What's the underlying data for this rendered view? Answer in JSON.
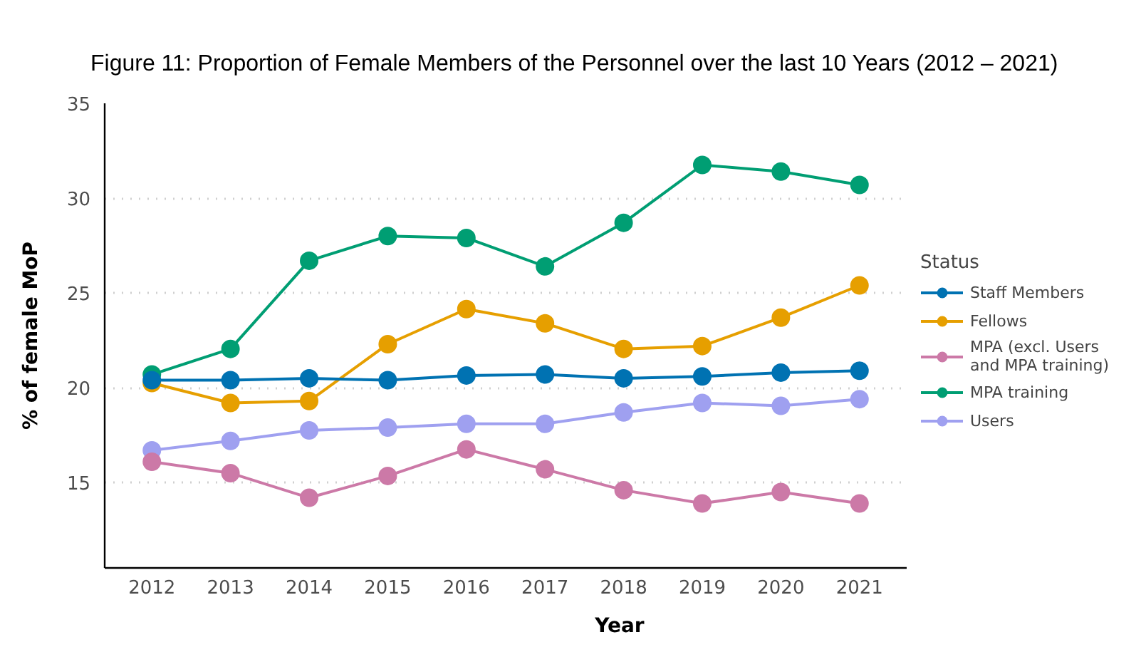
{
  "chart_data": {
    "type": "line",
    "title": "Figure 11: Proportion of Female Members of the Personnel over the last 10 Years (2012 – 2021)",
    "xlabel": "Year",
    "ylabel": "% of female MoP",
    "legend_title": "Status",
    "x": [
      2012,
      2013,
      2014,
      2015,
      2016,
      2017,
      2018,
      2019,
      2020,
      2021
    ],
    "xlim": [
      2011.4,
      2021.6
    ],
    "xticks": [
      2012,
      2013,
      2014,
      2015,
      2016,
      2017,
      2018,
      2019,
      2020,
      2021
    ],
    "ylim": [
      10.5,
      35
    ],
    "yticks": [
      15,
      20,
      25,
      30,
      35
    ],
    "grid": "y",
    "legend": "right",
    "marker": "circle",
    "line_style": "solid",
    "series": [
      {
        "name": "Staff Members",
        "color": "#0072b2",
        "values": [
          20.4,
          20.4,
          20.5,
          20.4,
          20.65,
          20.7,
          20.5,
          20.6,
          20.8,
          20.9
        ]
      },
      {
        "name": "Fellows",
        "color": "#e69f00",
        "values": [
          20.25,
          19.2,
          19.3,
          22.3,
          24.15,
          23.4,
          22.05,
          22.2,
          23.7,
          25.4
        ]
      },
      {
        "name": "MPA (excl. Users and MPA training)",
        "color": "#cc79a7",
        "values": [
          16.1,
          15.5,
          14.2,
          15.35,
          16.75,
          15.7,
          14.6,
          13.9,
          14.5,
          13.9
        ]
      },
      {
        "name": "MPA training",
        "color": "#009e73",
        "values": [
          20.7,
          22.05,
          26.7,
          28.0,
          27.9,
          26.4,
          28.7,
          31.75,
          31.4,
          30.7
        ]
      },
      {
        "name": "Users",
        "color": "#9fa0f0",
        "values": [
          16.7,
          17.2,
          17.75,
          17.9,
          18.1,
          18.1,
          18.7,
          19.2,
          19.05,
          19.4
        ]
      }
    ]
  }
}
